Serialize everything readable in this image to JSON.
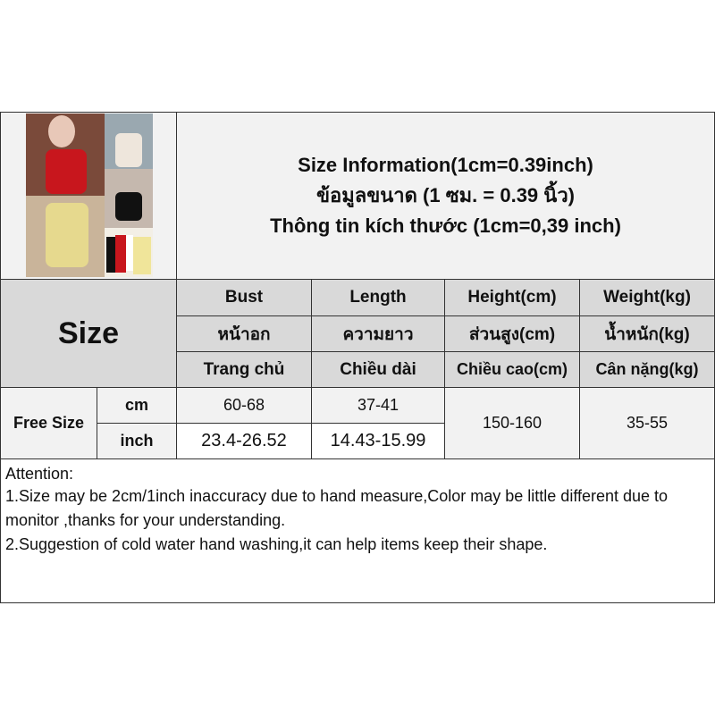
{
  "title": {
    "line1": "Size Information(1cm=0.39inch)",
    "line2": "ข้อมูลขนาด (1 ซม. = 0.39 นิ้ว)",
    "line3": "Thông tin kích thước (1cm=0,39 inch)"
  },
  "size_label": "Size",
  "headers": [
    {
      "en": "Bust",
      "th": "หน้าอก",
      "vi": "Trang chủ"
    },
    {
      "en": "Length",
      "th": "ความยาว",
      "vi": "Chiều dài"
    },
    {
      "en": "Height(cm)",
      "th": "ส่วนสูง(cm)",
      "vi": "Chiều cao(cm)"
    },
    {
      "en": "Weight(kg)",
      "th": "น้ำหนัก(kg)",
      "vi": "Cân nặng(kg)"
    }
  ],
  "row": {
    "size": "Free Size",
    "unit_cm": "cm",
    "unit_inch": "inch",
    "bust_cm": "60-68",
    "length_cm": "37-41",
    "bust_inch": "23.4-26.52",
    "length_inch": "14.43-15.99",
    "height": "150-160",
    "weight": "35-55"
  },
  "notes": [
    "Attention:",
    "1.Size may be 2cm/1inch inaccuracy due to hand measure,Color may be little different due to monitor ,thanks for your understanding.",
    "2.Suggestion of cold water hand washing,it can help items keep their shape."
  ]
}
